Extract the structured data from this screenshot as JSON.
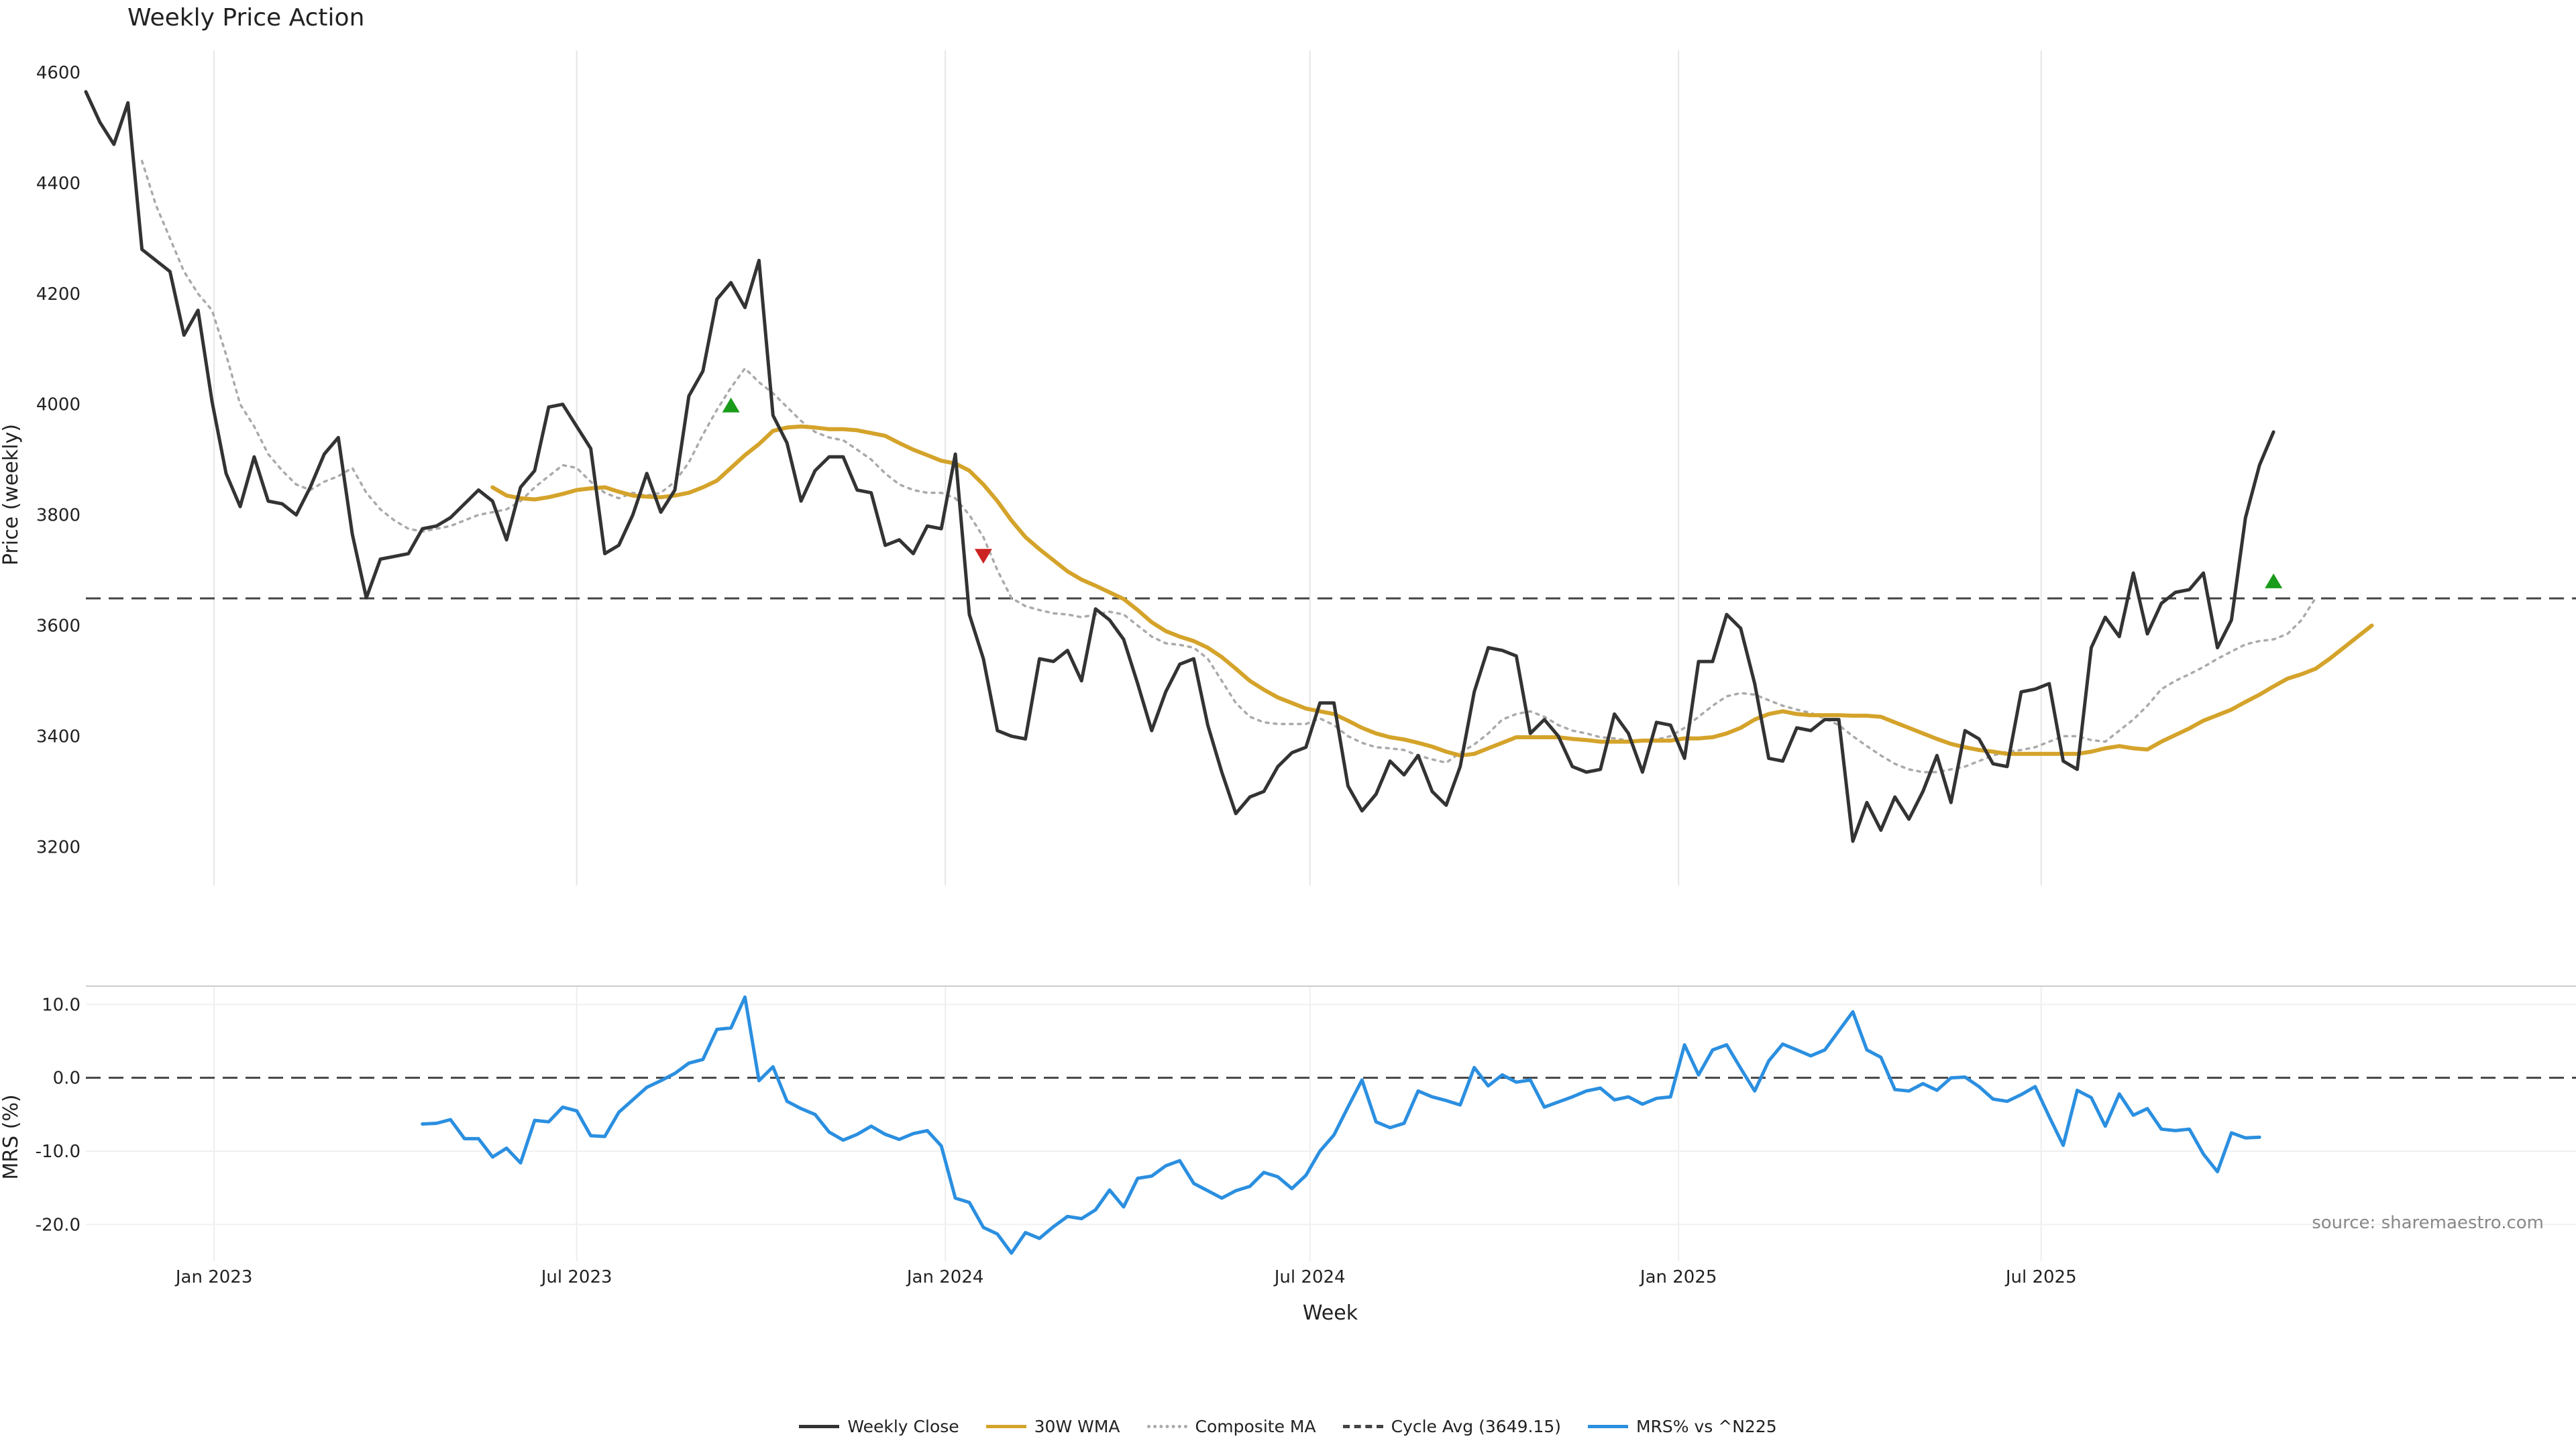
{
  "chart_data": [
    {
      "type": "line",
      "title": "Weekly Price Action",
      "ylabel": "Price (weekly)",
      "ylim": [
        3130,
        4640
      ],
      "yticks": [
        3200,
        3400,
        3600,
        3800,
        4000,
        4200,
        4400,
        4600
      ],
      "x_start": "2022-10-29",
      "x_step_days": 7,
      "grid": "vertical",
      "series": [
        {
          "name": "Weekly Close",
          "color": "#333333",
          "style": "solid",
          "start_index": 0,
          "values": [
            4565,
            4510,
            4470,
            4545,
            4280,
            4260,
            4240,
            4125,
            4170,
            4005,
            3875,
            3815,
            3905,
            3825,
            3820,
            3800,
            3850,
            3910,
            3940,
            3765,
            3650,
            3720,
            3725,
            3730,
            3775,
            3780,
            3795,
            3820,
            3845,
            3825,
            3755,
            3850,
            3880,
            3995,
            4000,
            3960,
            3920,
            3730,
            3745,
            3800,
            3875,
            3805,
            3845,
            4015,
            4060,
            4190,
            4220,
            4175,
            4260,
            3980,
            3930,
            3825,
            3880,
            3905,
            3905,
            3845,
            3840,
            3745,
            3755,
            3730,
            3780,
            3775,
            3910,
            3620,
            3540,
            3410,
            3400,
            3395,
            3540,
            3535,
            3555,
            3500,
            3630,
            3610,
            3575,
            3495,
            3410,
            3480,
            3530,
            3540,
            3420,
            3335,
            3260,
            3290,
            3300,
            3345,
            3370,
            3380,
            3460,
            3460,
            3310,
            3265,
            3295,
            3355,
            3330,
            3365,
            3300,
            3275,
            3345,
            3480,
            3560,
            3555,
            3545,
            3405,
            3430,
            3400,
            3345,
            3335,
            3340,
            3440,
            3405,
            3335,
            3425,
            3420,
            3360,
            3535,
            3535,
            3620,
            3595,
            3495,
            3360,
            3355,
            3415,
            3410,
            3430,
            3430,
            3210,
            3280,
            3230,
            3290,
            3250,
            3300,
            3365,
            3280,
            3410,
            3395,
            3350,
            3345,
            3480,
            3485,
            3495,
            3355,
            3340,
            3560,
            3615,
            3580,
            3695,
            3585,
            3640,
            3660,
            3665,
            3695,
            3560,
            3610,
            3795,
            3890,
            3950
          ]
        },
        {
          "name": "30W WMA",
          "color": "#d4a32a",
          "style": "solid",
          "start_index": 29,
          "values": [
            3850,
            3835,
            3830,
            3828,
            3832,
            3838,
            3845,
            3848,
            3850,
            3842,
            3835,
            3833,
            3832,
            3835,
            3840,
            3850,
            3862,
            3885,
            3908,
            3928,
            3952,
            3958,
            3960,
            3958,
            3955,
            3955,
            3953,
            3948,
            3943,
            3930,
            3918,
            3908,
            3898,
            3893,
            3880,
            3855,
            3825,
            3790,
            3760,
            3738,
            3718,
            3698,
            3683,
            3672,
            3660,
            3648,
            3628,
            3606,
            3590,
            3580,
            3572,
            3560,
            3543,
            3522,
            3500,
            3484,
            3470,
            3460,
            3450,
            3445,
            3440,
            3428,
            3415,
            3405,
            3398,
            3394,
            3388,
            3381,
            3372,
            3365,
            3368,
            3378,
            3388,
            3398,
            3398,
            3398,
            3398,
            3395,
            3393,
            3390,
            3390,
            3390,
            3392,
            3392,
            3392,
            3396,
            3396,
            3398,
            3405,
            3415,
            3430,
            3440,
            3445,
            3440,
            3438,
            3438,
            3438,
            3437,
            3437,
            3435,
            3425,
            3415,
            3405,
            3395,
            3386,
            3380,
            3375,
            3372,
            3368,
            3368,
            3368,
            3368,
            3368,
            3368,
            3372,
            3378,
            3382,
            3378,
            3376,
            3390,
            3402,
            3414,
            3428,
            3438,
            3448,
            3462,
            3475,
            3490,
            3504,
            3512,
            3522,
            3540,
            3560,
            3580,
            3600
          ]
        },
        {
          "name": "Composite MA",
          "color": "#aaaaaa",
          "style": "dotted",
          "start_index": 4,
          "values": [
            4440,
            4360,
            4300,
            4240,
            4200,
            4170,
            4090,
            4000,
            3960,
            3910,
            3880,
            3855,
            3845,
            3860,
            3870,
            3885,
            3840,
            3810,
            3790,
            3775,
            3770,
            3775,
            3780,
            3790,
            3800,
            3805,
            3810,
            3825,
            3850,
            3870,
            3890,
            3885,
            3860,
            3840,
            3830,
            3840,
            3835,
            3840,
            3860,
            3895,
            3945,
            3990,
            4030,
            4065,
            4040,
            4020,
            3995,
            3970,
            3950,
            3940,
            3935,
            3918,
            3900,
            3875,
            3855,
            3845,
            3840,
            3840,
            3830,
            3800,
            3760,
            3700,
            3650,
            3635,
            3628,
            3622,
            3620,
            3615,
            3620,
            3625,
            3620,
            3600,
            3580,
            3568,
            3565,
            3560,
            3540,
            3500,
            3460,
            3435,
            3425,
            3422,
            3422,
            3422,
            3432,
            3420,
            3400,
            3388,
            3380,
            3378,
            3375,
            3365,
            3358,
            3352,
            3370,
            3385,
            3405,
            3430,
            3440,
            3445,
            3435,
            3420,
            3410,
            3405,
            3398,
            3396,
            3392,
            3392,
            3394,
            3400,
            3415,
            3435,
            3455,
            3472,
            3478,
            3475,
            3465,
            3455,
            3448,
            3442,
            3432,
            3420,
            3400,
            3382,
            3365,
            3350,
            3340,
            3335,
            3335,
            3340,
            3345,
            3355,
            3365,
            3372,
            3375,
            3380,
            3390,
            3400,
            3400,
            3393,
            3390,
            3410,
            3430,
            3455,
            3485,
            3500,
            3512,
            3525,
            3540,
            3553,
            3566,
            3572,
            3575,
            3585,
            3610,
            3650
          ]
        }
      ],
      "reference_line": {
        "name": "Cycle Avg (3649.15)",
        "value": 3649.15,
        "color": "#444444",
        "style": "dashed"
      },
      "markers": [
        {
          "type": "buy",
          "index": 46,
          "value": 3998,
          "color": "#1a9c1a"
        },
        {
          "type": "sell",
          "index": 64,
          "value": 3726,
          "color": "#cc2222"
        },
        {
          "type": "buy",
          "index": 156,
          "value": 3680,
          "color": "#1a9c1a"
        }
      ]
    },
    {
      "type": "line",
      "xlabel": "Week",
      "ylabel": "MRS (%)",
      "ylim": [
        -25,
        12.5
      ],
      "yticks": [
        -20,
        -10,
        0,
        10
      ],
      "ytick_labels": [
        "-20.0",
        "-10.0",
        "0.0",
        "10.0"
      ],
      "xticks": [
        {
          "label": "Jan 2023",
          "date": "2023-01-01"
        },
        {
          "label": "Jul 2023",
          "date": "2023-07-01"
        },
        {
          "label": "Jan 2024",
          "date": "2024-01-01"
        },
        {
          "label": "Jul 2024",
          "date": "2024-07-01"
        },
        {
          "label": "Jan 2025",
          "date": "2025-01-01"
        },
        {
          "label": "Jul 2025",
          "date": "2025-07-01"
        }
      ],
      "series": [
        {
          "name": "MRS% vs ^N225",
          "color": "#2b8fe0",
          "style": "solid",
          "start_index": 24,
          "values": [
            -6.3,
            -6.2,
            -5.7,
            -8.3,
            -8.3,
            -10.8,
            -9.6,
            -11.6,
            -5.8,
            -6.0,
            -4.0,
            -4.5,
            -7.9,
            -8.0,
            -4.7,
            -3.0,
            -1.3,
            -0.4,
            0.6,
            2.0,
            2.5,
            6.6,
            6.8,
            11.0,
            -0.4,
            1.5,
            -3.2,
            -4.2,
            -5.0,
            -7.4,
            -8.5,
            -7.7,
            -6.6,
            -7.7,
            -8.4,
            -7.6,
            -7.2,
            -9.3,
            -16.4,
            -17.0,
            -20.4,
            -21.3,
            -23.9,
            -21.1,
            -21.9,
            -20.3,
            -18.9,
            -19.2,
            -18.0,
            -15.3,
            -17.6,
            -13.7,
            -13.4,
            -12.0,
            -11.3,
            -14.4,
            -15.4,
            -16.4,
            -15.4,
            -14.8,
            -12.9,
            -13.5,
            -15.1,
            -13.3,
            -10.0,
            -7.8,
            -4.0,
            -0.3,
            -6.0,
            -6.8,
            -6.2,
            -1.8,
            -2.6,
            -3.1,
            -3.7,
            1.4,
            -1.1,
            0.4,
            -0.6,
            -0.3,
            -4.0,
            -3.3,
            -2.6,
            -1.8,
            -1.4,
            -3.0,
            -2.6,
            -3.6,
            -2.8,
            -2.6,
            4.5,
            0.4,
            3.8,
            4.5,
            1.3,
            -1.8,
            2.3,
            4.6,
            3.8,
            3.0,
            3.8,
            6.4,
            9.0,
            3.8,
            2.8,
            -1.6,
            -1.8,
            -0.8,
            -1.7,
            0.0,
            0.1,
            -1.2,
            -2.9,
            -3.2,
            -2.3,
            -1.2,
            -5.3,
            -9.2,
            -1.7,
            -2.7,
            -6.6,
            -2.2,
            -5.1,
            -4.2,
            -7.0,
            -7.2,
            -7.0,
            -10.4,
            -12.8,
            -7.5,
            -8.2,
            -8.1
          ]
        }
      ],
      "reference_line": {
        "value": 0,
        "color": "#444444",
        "style": "dashed"
      }
    }
  ],
  "source_text": "source: sharemaestro.com",
  "legend": [
    {
      "label": "Weekly Close",
      "color": "#333333",
      "style": "solid"
    },
    {
      "label": "30W WMA",
      "color": "#d4a32a",
      "style": "solid"
    },
    {
      "label": "Composite MA",
      "color": "#aaaaaa",
      "style": "dotted"
    },
    {
      "label": "Cycle Avg (3649.15)",
      "color": "#444444",
      "style": "dashed"
    },
    {
      "label": "MRS% vs ^N225",
      "color": "#2b8fe0",
      "style": "solid"
    }
  ]
}
